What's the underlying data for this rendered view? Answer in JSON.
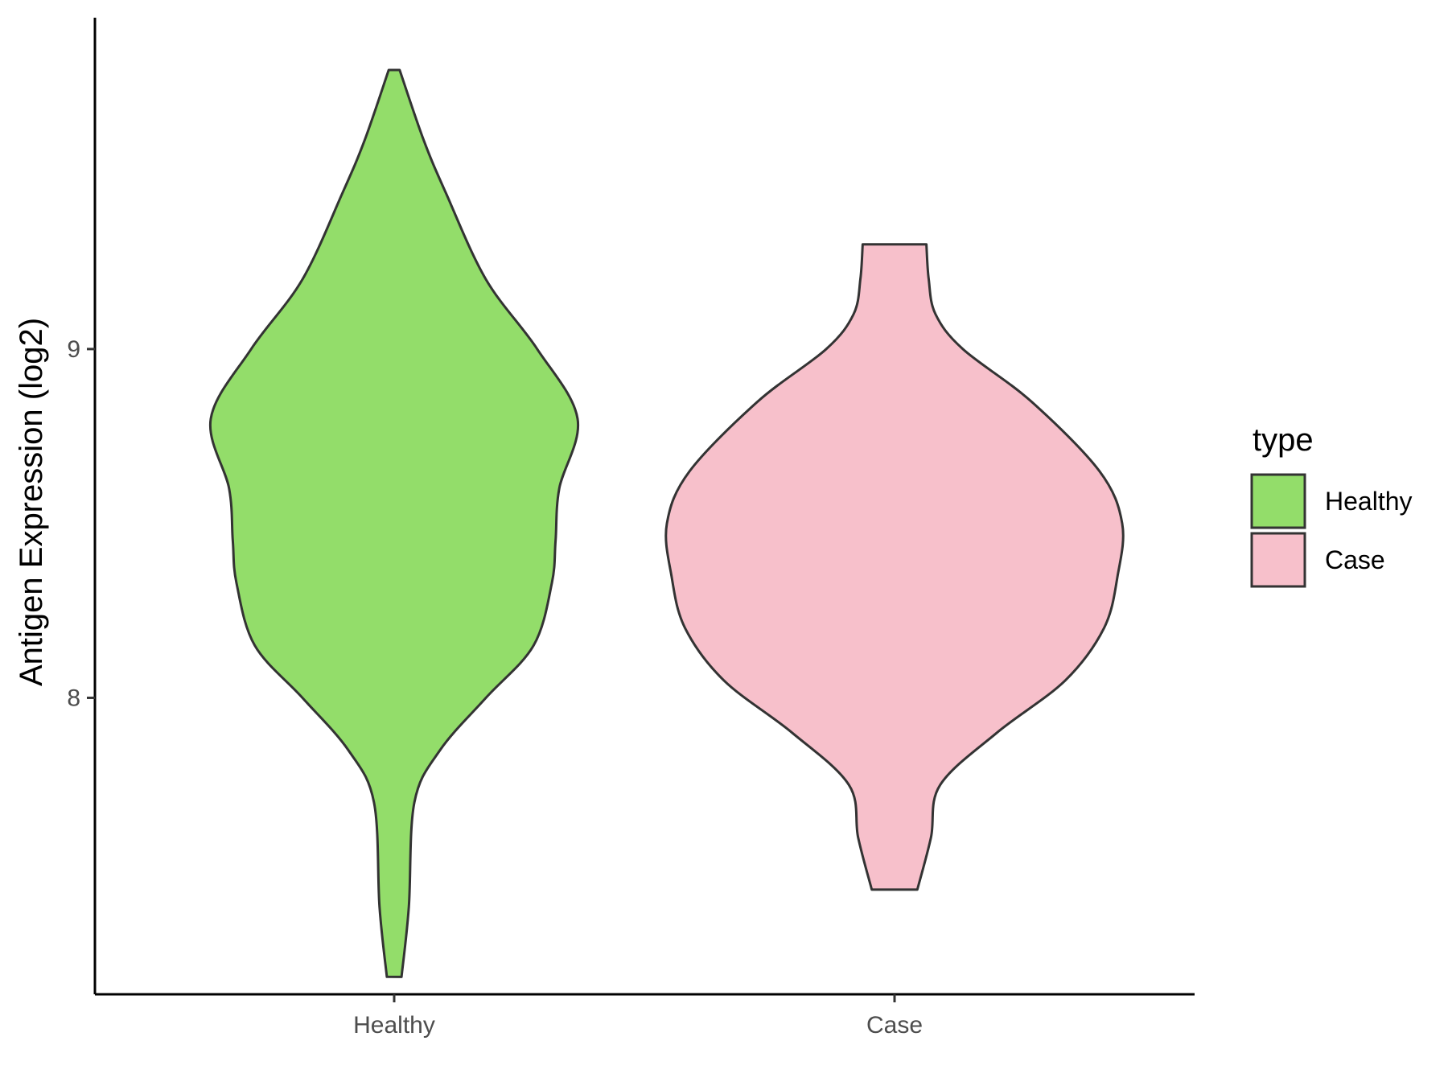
{
  "chart_data": {
    "type": "violin",
    "title": "",
    "xlabel": "",
    "ylabel": "Antigen Expression (log2)",
    "categories": [
      "Healthy",
      "Case"
    ],
    "ylim": [
      7.15,
      9.95
    ],
    "yticks": [
      8,
      9
    ],
    "ytick_labels": [
      "8",
      "9"
    ],
    "grid": false,
    "legend": {
      "title": "type",
      "position": "right",
      "entries": [
        {
          "label": "Healthy",
          "color": "#93DD6A"
        },
        {
          "label": "Case",
          "color": "#F7C0CB"
        }
      ]
    },
    "series": [
      {
        "name": "Healthy",
        "color": "#93DD6A",
        "min": 7.2,
        "max": 9.8,
        "density_profile": [
          {
            "y": 7.2,
            "w": 0.04
          },
          {
            "y": 7.4,
            "w": 0.08
          },
          {
            "y": 7.7,
            "w": 0.11
          },
          {
            "y": 7.85,
            "w": 0.25
          },
          {
            "y": 8.0,
            "w": 0.5
          },
          {
            "y": 8.15,
            "w": 0.76
          },
          {
            "y": 8.33,
            "w": 0.86
          },
          {
            "y": 8.45,
            "w": 0.88
          },
          {
            "y": 8.6,
            "w": 0.9
          },
          {
            "y": 8.8,
            "w": 1.0
          },
          {
            "y": 9.0,
            "w": 0.78
          },
          {
            "y": 9.2,
            "w": 0.5
          },
          {
            "y": 9.45,
            "w": 0.28
          },
          {
            "y": 9.6,
            "w": 0.16
          },
          {
            "y": 9.8,
            "w": 0.03
          }
        ]
      },
      {
        "name": "Case",
        "color": "#F7C0CB",
        "min": 7.45,
        "max": 9.3,
        "density_profile": [
          {
            "y": 7.45,
            "w": 0.1
          },
          {
            "y": 7.6,
            "w": 0.16
          },
          {
            "y": 7.75,
            "w": 0.2
          },
          {
            "y": 7.9,
            "w": 0.45
          },
          {
            "y": 8.05,
            "w": 0.75
          },
          {
            "y": 8.2,
            "w": 0.92
          },
          {
            "y": 8.35,
            "w": 0.98
          },
          {
            "y": 8.5,
            "w": 1.0
          },
          {
            "y": 8.65,
            "w": 0.9
          },
          {
            "y": 8.85,
            "w": 0.6
          },
          {
            "y": 9.0,
            "w": 0.3
          },
          {
            "y": 9.1,
            "w": 0.18
          },
          {
            "y": 9.2,
            "w": 0.15
          },
          {
            "y": 9.3,
            "w": 0.14
          }
        ]
      }
    ]
  }
}
